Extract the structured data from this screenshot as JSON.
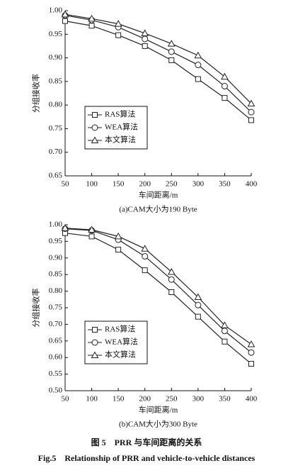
{
  "chart_data": [
    {
      "type": "line",
      "subtitle": "(a)CAM大小为190 Byte",
      "x_label": "车间距离/m",
      "y_label": "分组接收率",
      "x": [
        50,
        100,
        150,
        200,
        250,
        300,
        350,
        400
      ],
      "xlim": [
        50,
        400
      ],
      "xticks": [
        50,
        100,
        150,
        200,
        250,
        300,
        350,
        400
      ],
      "ylim": [
        0.65,
        1.0
      ],
      "yticks": [
        {
          "value": 0.65,
          "label": "0.65"
        },
        {
          "value": 0.7,
          "label": "0.70"
        },
        {
          "value": 0.75,
          "label": "0.75"
        },
        {
          "value": 0.8,
          "label": "0.80"
        },
        {
          "value": 0.85,
          "label": "0.85"
        },
        {
          "value": 0.9,
          "label": "0.90"
        },
        {
          "value": 0.95,
          "label": "0.95"
        },
        {
          "value": 1.0,
          "label": "1.00"
        }
      ],
      "legend": "lower left",
      "series": [
        {
          "name": "RAS算法",
          "color": "#222222",
          "marker": "square",
          "values": [
            0.978,
            0.968,
            0.948,
            0.925,
            0.895,
            0.855,
            0.815,
            0.768
          ]
        },
        {
          "name": "WEA算法",
          "color": "#222222",
          "marker": "circle",
          "values": [
            0.99,
            0.98,
            0.965,
            0.94,
            0.913,
            0.885,
            0.84,
            0.785
          ]
        },
        {
          "name": "本文算法",
          "color": "#222222",
          "marker": "triangle",
          "values": [
            0.992,
            0.983,
            0.972,
            0.952,
            0.93,
            0.905,
            0.86,
            0.803
          ]
        }
      ]
    },
    {
      "type": "line",
      "subtitle": "(b)CAM大小为300 Byte",
      "x_label": "车间距离/m",
      "y_label": "分组接收率",
      "x": [
        50,
        100,
        150,
        200,
        250,
        300,
        350,
        400
      ],
      "xlim": [
        50,
        400
      ],
      "xticks": [
        50,
        100,
        150,
        200,
        250,
        300,
        350,
        400
      ],
      "ylim": [
        0.5,
        1.0
      ],
      "yticks": [
        {
          "value": 0.5,
          "label": "0.50"
        },
        {
          "value": 0.55,
          "label": "0.55"
        },
        {
          "value": 0.6,
          "label": "0.60"
        },
        {
          "value": 0.65,
          "label": "0.65"
        },
        {
          "value": 0.7,
          "label": "0.70"
        },
        {
          "value": 0.75,
          "label": "0.75"
        },
        {
          "value": 0.8,
          "label": "0.80"
        },
        {
          "value": 0.85,
          "label": "0.85"
        },
        {
          "value": 0.9,
          "label": "0.90"
        },
        {
          "value": 0.95,
          "label": "0.95"
        },
        {
          "value": 1.0,
          "label": "1.00"
        }
      ],
      "legend": "lower left",
      "series": [
        {
          "name": "RAS算法",
          "color": "#222222",
          "marker": "square",
          "values": [
            0.975,
            0.965,
            0.925,
            0.863,
            0.797,
            0.723,
            0.648,
            0.581
          ]
        },
        {
          "name": "WEA算法",
          "color": "#222222",
          "marker": "circle",
          "values": [
            0.988,
            0.983,
            0.955,
            0.905,
            0.835,
            0.758,
            0.68,
            0.615
          ]
        },
        {
          "name": "本文算法",
          "color": "#222222",
          "marker": "triangle",
          "values": [
            0.99,
            0.985,
            0.965,
            0.928,
            0.858,
            0.782,
            0.697,
            0.64
          ]
        }
      ]
    }
  ],
  "figure": {
    "caption_cn": "图 5　PRR 与车间距离的关系",
    "caption_en": "Fig.5　Relationship of PRR and vehicle-to-vehicle distances"
  }
}
